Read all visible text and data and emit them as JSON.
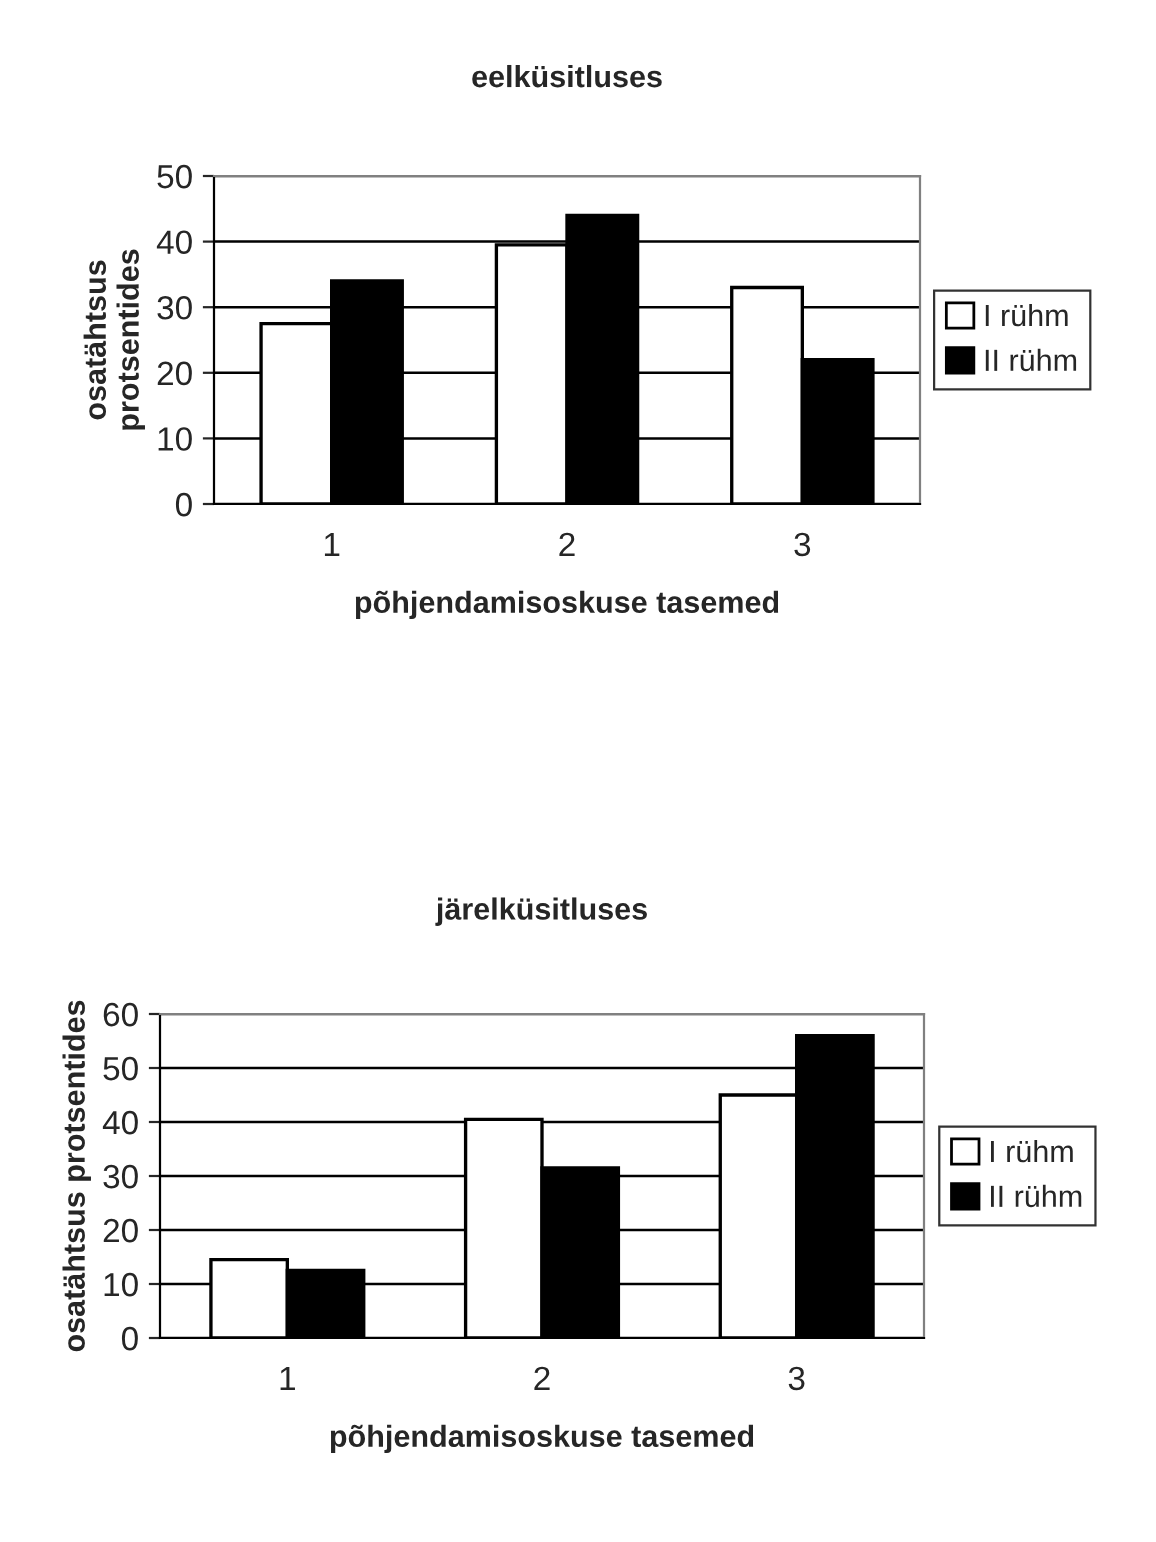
{
  "chart_data": [
    {
      "type": "bar",
      "title": "eelküsitluses",
      "xlabel": "põhjendamisoskuse tasemed",
      "ylabel": "osatähtsus\nprotsentides",
      "categories": [
        "1",
        "2",
        "3"
      ],
      "series": [
        {
          "name": "I rühm",
          "color": "#ffffff",
          "values": [
            27.5,
            39.5,
            33
          ]
        },
        {
          "name": "II rühm",
          "color": "#000000",
          "values": [
            34,
            44,
            22
          ]
        }
      ],
      "ylim": [
        0,
        50
      ],
      "yticks": [
        0,
        10,
        20,
        30,
        40,
        50
      ],
      "grid": "y",
      "legend": "right"
    },
    {
      "type": "bar",
      "title": "järelküsitluses",
      "xlabel": "põhjendamisoskuse tasemed",
      "ylabel": "osatähtsus protsentides",
      "categories": [
        "1",
        "2",
        "3"
      ],
      "series": [
        {
          "name": "I rühm",
          "color": "#ffffff",
          "values": [
            14.5,
            40.5,
            45
          ]
        },
        {
          "name": "II rühm",
          "color": "#000000",
          "values": [
            12.5,
            31.5,
            56
          ]
        }
      ],
      "ylim": [
        0,
        60
      ],
      "yticks": [
        0,
        10,
        20,
        30,
        40,
        50,
        60
      ],
      "grid": "y",
      "legend": "right"
    }
  ]
}
